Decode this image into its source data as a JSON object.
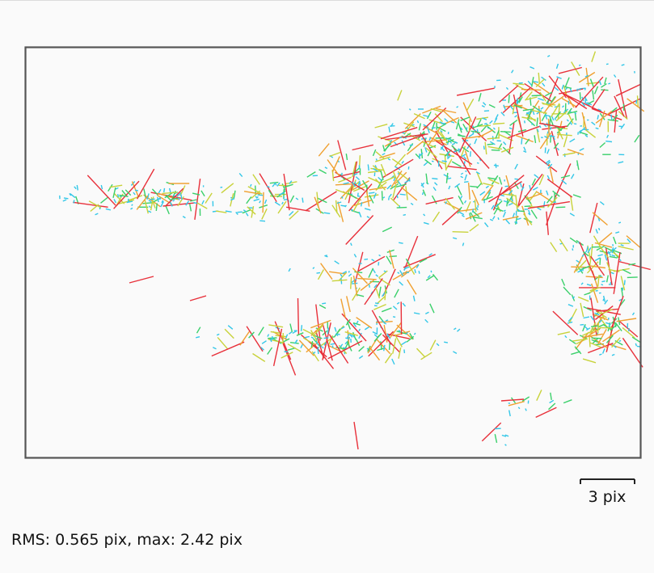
{
  "stats_text": "RMS: 0.565 pix, max: 2.42 pix",
  "scale_bar": {
    "label": "3 pix",
    "value": 3
  },
  "colors": {
    "background": "#fafafa",
    "frame": "#555555",
    "small_error": "#33c7e8",
    "low_error": "#3ad06a",
    "mid_error": "#c8d23a",
    "high_error": "#f0a030",
    "max_error": "#e8303a"
  },
  "chart_data": {
    "type": "vector-field",
    "title": "",
    "xlabel": "",
    "ylabel": "",
    "rms_pix": 0.565,
    "max_pix": 2.42,
    "scale_bar_pix": 3
  }
}
